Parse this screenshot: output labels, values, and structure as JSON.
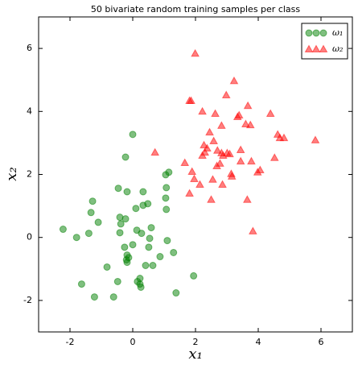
{
  "chart_data": {
    "type": "scatter",
    "title": "50 bivariate random training samples per class",
    "x_label": "x₁",
    "y_label": "x₂",
    "xlim": [
      -3,
      7
    ],
    "ylim": [
      -3,
      7
    ],
    "xticks": [
      -2,
      0,
      2,
      4,
      6
    ],
    "yticks": [
      -2,
      0,
      2,
      4,
      6
    ],
    "legend": "upper right",
    "alpha": 0.5,
    "series": [
      {
        "name": "ω₁",
        "color": "#008000",
        "marker": "circle",
        "x": [
          0,
          -0.23,
          1.15,
          1.05,
          -0.18,
          -0.46,
          0.33,
          1.07,
          1.05,
          -1.28,
          0.48,
          0.33,
          0.1,
          1.07,
          -1.33,
          -0.41,
          -0.23,
          -1.1,
          -0.38,
          0.59,
          -2.22,
          0.13,
          -0.41,
          -1.4,
          0.28,
          -1.79,
          0.54,
          1.1,
          0,
          -0.26,
          0.51,
          -0.18,
          1.3,
          -0.13,
          0.87,
          -0.18,
          -0.2,
          0.64,
          0.41,
          -0.82,
          1.94,
          0.23,
          -0.48,
          -1.63,
          0.23,
          0.26,
          1.38,
          -1.22,
          -0.61,
          0.15
        ],
        "values": [
          3.27,
          2.55,
          2.07,
          1.99,
          1.45,
          1.56,
          1.45,
          1.58,
          1.25,
          1.15,
          1.07,
          1.02,
          0.92,
          0.89,
          0.79,
          0.64,
          0.59,
          0.48,
          0.43,
          0.31,
          0.26,
          0.23,
          0.15,
          0.13,
          0.13,
          0,
          -0.03,
          -0.1,
          -0.23,
          -0.31,
          -0.31,
          -0.56,
          -0.48,
          -0.64,
          -0.61,
          -0.79,
          -0.71,
          -0.89,
          -0.89,
          -0.94,
          -1.22,
          -1.3,
          -1.4,
          -1.48,
          -1.48,
          -1.58,
          -1.76,
          -1.89,
          -1.89,
          -1.4
        ]
      },
      {
        "name": "ω₂",
        "color": "#ff0000",
        "marker": "triangle",
        "x": [
          1.99,
          3.23,
          1.81,
          1.86,
          2.98,
          3.67,
          2.22,
          2.63,
          3.39,
          3.34,
          4.39,
          3.6,
          3.75,
          2.83,
          2.45,
          4.62,
          4.69,
          4.82,
          5.82,
          2.58,
          2.27,
          2.37,
          2.7,
          3.01,
          0.71,
          2.83,
          2.22,
          2.88,
          3.09,
          4.52,
          1.66,
          3.44,
          3.78,
          2.68,
          4.06,
          3.98,
          3.14,
          3.16,
          1.89,
          2.55,
          2.14,
          2.86,
          1.81,
          2.5,
          3.65,
          3.83,
          1.96,
          3.44,
          2.78,
          2.3
        ],
        "values": [
          5.84,
          4.97,
          4.34,
          4.34,
          4.52,
          4.18,
          4.0,
          3.93,
          3.88,
          3.83,
          3.93,
          3.6,
          3.57,
          3.55,
          3.34,
          3.27,
          3.16,
          3.16,
          3.09,
          3.06,
          2.93,
          2.83,
          2.76,
          2.68,
          2.7,
          2.68,
          2.6,
          2.6,
          2.65,
          2.53,
          2.37,
          2.42,
          2.42,
          2.27,
          2.14,
          2.07,
          2.02,
          1.94,
          2.09,
          1.84,
          1.68,
          1.68,
          1.4,
          1.2,
          1.2,
          0.2,
          1.86,
          2.78,
          2.35,
          2.7
        ]
      }
    ]
  }
}
